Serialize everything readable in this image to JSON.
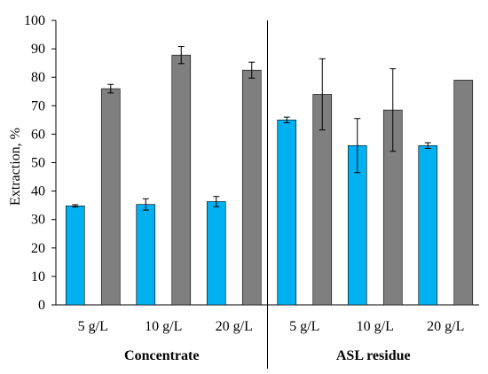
{
  "chart_data": {
    "type": "bar",
    "ylabel": "Extraction, %",
    "ylim": [
      0,
      100
    ],
    "yticks": [
      0,
      10,
      20,
      30,
      40,
      50,
      60,
      70,
      80,
      90,
      100
    ],
    "grid": false,
    "groups": [
      {
        "name": "Concentrate",
        "categories": [
          {
            "label": "5 g/L",
            "bars": [
              {
                "value": 34.8,
                "error": 0.4
              },
              {
                "value": 76.0,
                "error": 1.5
              }
            ]
          },
          {
            "label": "10 g/L",
            "bars": [
              {
                "value": 35.3,
                "error": 2.0
              },
              {
                "value": 87.8,
                "error": 3.0
              }
            ]
          },
          {
            "label": "20 g/L",
            "bars": [
              {
                "value": 36.3,
                "error": 1.8
              },
              {
                "value": 82.5,
                "error": 2.8
              }
            ]
          }
        ]
      },
      {
        "name": "ASL residue",
        "categories": [
          {
            "label": "5 g/L",
            "bars": [
              {
                "value": 65.0,
                "error": 1.0
              },
              {
                "value": 74.0,
                "error": 12.5
              }
            ]
          },
          {
            "label": "10 g/L",
            "bars": [
              {
                "value": 56.0,
                "error": 9.5
              },
              {
                "value": 68.5,
                "error": 14.5
              }
            ]
          },
          {
            "label": "20 g/L",
            "bars": [
              {
                "value": 56.0,
                "error": 1.0
              },
              {
                "value": 79.0,
                "error": 0
              }
            ]
          }
        ]
      }
    ],
    "colors": {
      "series_1": "#00B0F0",
      "series_2": "#7F7F7F",
      "axis": "#000000"
    }
  }
}
